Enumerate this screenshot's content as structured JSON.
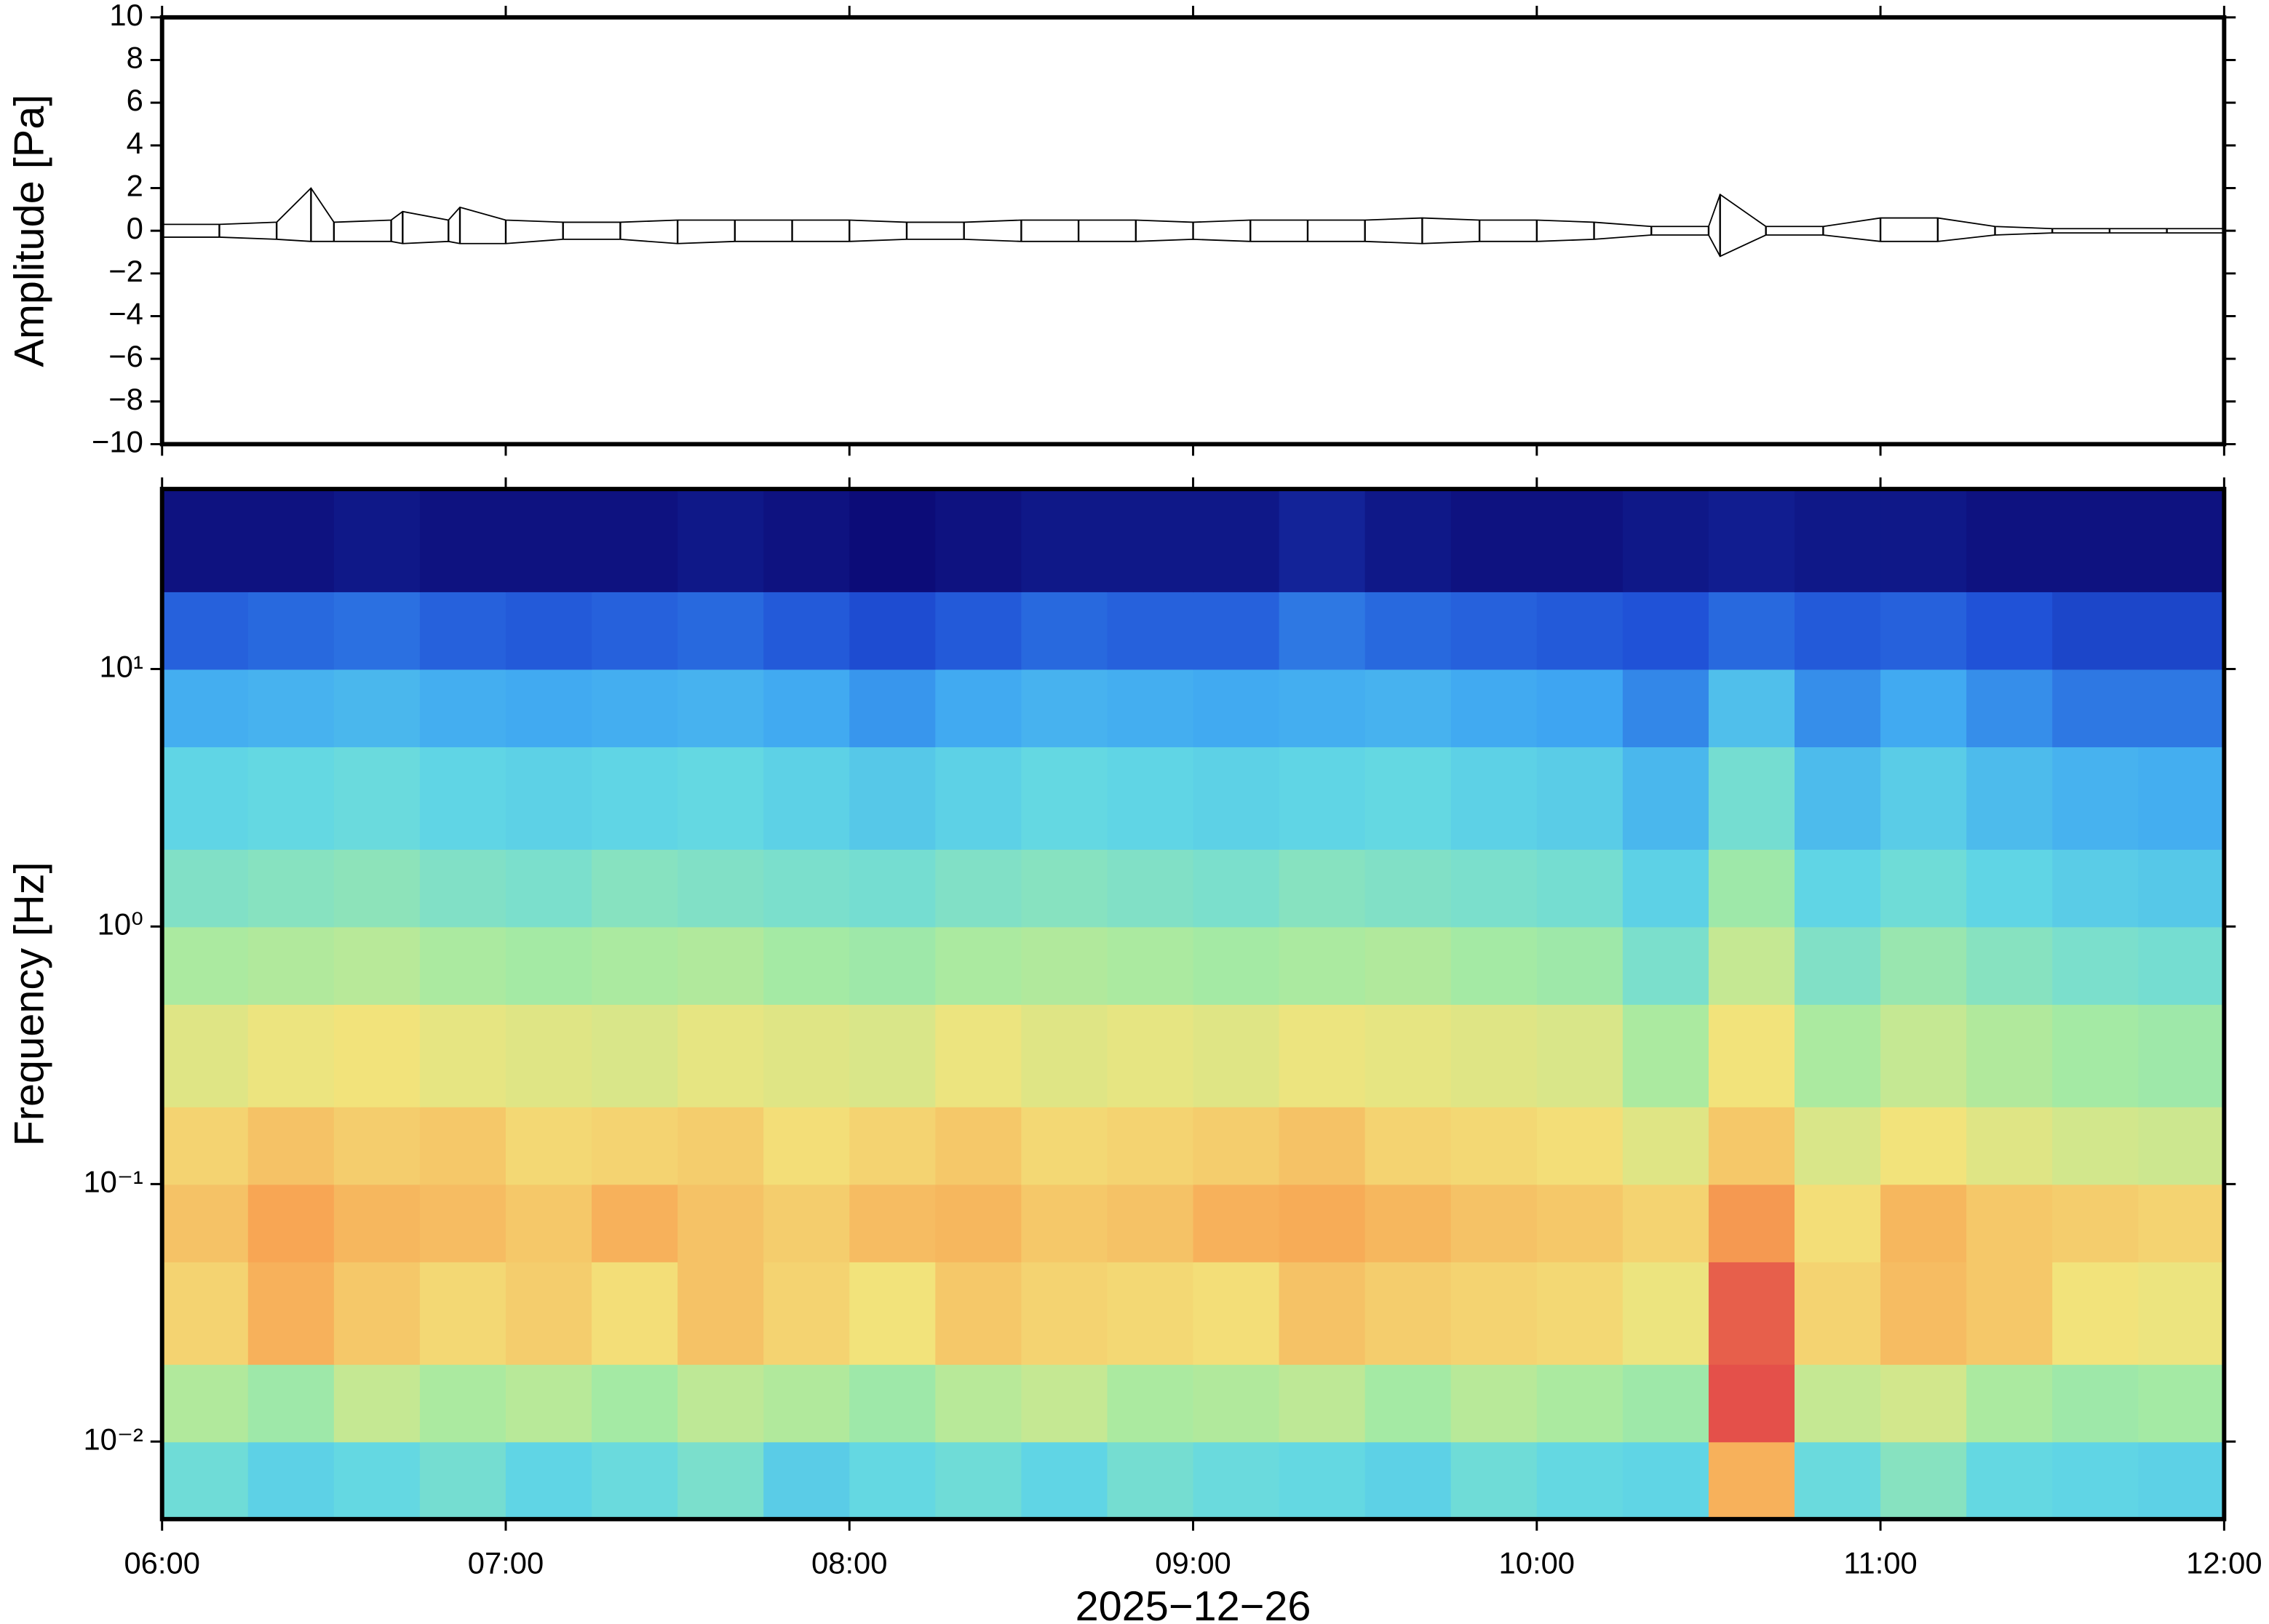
{
  "chart_data": [
    {
      "type": "line",
      "ylabel": "Amplitude [Pa]",
      "x": [
        "06:00",
        "06:10",
        "06:20",
        "06:26",
        "06:30",
        "06:40",
        "06:42",
        "06:50",
        "06:52",
        "07:00",
        "07:10",
        "07:20",
        "07:30",
        "07:40",
        "07:50",
        "08:00",
        "08:10",
        "08:20",
        "08:30",
        "08:40",
        "08:50",
        "09:00",
        "09:10",
        "09:20",
        "09:30",
        "09:40",
        "09:50",
        "10:00",
        "10:10",
        "10:20",
        "10:30",
        "10:32",
        "10:40",
        "10:50",
        "11:00",
        "11:10",
        "11:20",
        "11:30",
        "11:40",
        "11:50",
        "12:00"
      ],
      "series": [
        {
          "color": "#000000",
          "values": [
            0.3,
            0.3,
            0.4,
            2.0,
            0.4,
            0.5,
            0.9,
            0.5,
            1.1,
            0.5,
            0.4,
            0.4,
            0.5,
            0.5,
            0.5,
            0.5,
            0.4,
            0.4,
            0.5,
            0.5,
            0.5,
            0.4,
            0.5,
            0.5,
            0.5,
            0.6,
            0.5,
            0.5,
            0.4,
            0.2,
            0.2,
            1.7,
            0.2,
            0.2,
            0.6,
            0.6,
            0.2,
            0.1,
            0.1,
            0.1,
            0.1
          ]
        },
        {
          "color": "#000000",
          "values": [
            -0.3,
            -0.3,
            -0.4,
            -0.5,
            -0.5,
            -0.5,
            -0.6,
            -0.5,
            -0.6,
            -0.6,
            -0.4,
            -0.4,
            -0.6,
            -0.5,
            -0.5,
            -0.5,
            -0.4,
            -0.4,
            -0.5,
            -0.5,
            -0.5,
            -0.4,
            -0.5,
            -0.5,
            -0.5,
            -0.6,
            -0.5,
            -0.5,
            -0.4,
            -0.2,
            -0.2,
            -1.2,
            -0.2,
            -0.2,
            -0.5,
            -0.5,
            -0.2,
            -0.1,
            -0.1,
            -0.1,
            -0.1
          ]
        }
      ],
      "xlim": [
        "06:00",
        "12:00"
      ],
      "ylim": [
        -10,
        10
      ],
      "yticks": [
        {
          "value": -10,
          "label": "−10"
        },
        {
          "value": -8,
          "label": "−8"
        },
        {
          "value": -6,
          "label": "−6"
        },
        {
          "value": -4,
          "label": "−4"
        },
        {
          "value": -2,
          "label": "−2"
        },
        0,
        2,
        4,
        6,
        8,
        10
      ]
    },
    {
      "type": "heatmap",
      "ylabel": "Frequency [Hz]",
      "xlabel": "2025−12−26",
      "x_edges": [
        "06:00",
        "06:15",
        "06:30",
        "06:45",
        "07:00",
        "07:15",
        "07:30",
        "07:45",
        "08:00",
        "08:15",
        "08:30",
        "08:45",
        "09:00",
        "09:15",
        "09:30",
        "09:45",
        "10:00",
        "10:15",
        "10:30",
        "10:45",
        "11:00",
        "11:15",
        "11:30",
        "11:45",
        "12:00"
      ],
      "y_edges": [
        0.005,
        0.01,
        0.02,
        0.05,
        0.1,
        0.2,
        0.5,
        1,
        2,
        5,
        10,
        20,
        50
      ],
      "values": [
        [
          4.2,
          3.8,
          4.0,
          4.3,
          3.9,
          4.1,
          4.4,
          3.7,
          4.0,
          4.2,
          3.9,
          4.3,
          4.1,
          4.0,
          3.8,
          4.2,
          4.0,
          3.9,
          7.2,
          4.1,
          4.6,
          4.0,
          3.9,
          3.8
        ],
        [
          5.3,
          5.0,
          5.6,
          5.2,
          5.4,
          5.1,
          5.5,
          5.3,
          5.0,
          5.4,
          5.6,
          5.2,
          5.3,
          5.5,
          5.1,
          5.4,
          5.2,
          5.0,
          8.6,
          5.6,
          5.8,
          5.2,
          5.0,
          5.1
        ],
        [
          6.6,
          7.2,
          6.8,
          6.5,
          6.7,
          6.4,
          6.9,
          6.6,
          6.3,
          6.8,
          6.6,
          6.5,
          6.4,
          6.9,
          6.7,
          6.6,
          6.5,
          6.2,
          8.4,
          6.6,
          7.0,
          6.8,
          6.3,
          6.2
        ],
        [
          6.9,
          7.4,
          7.1,
          7.0,
          6.8,
          7.2,
          6.9,
          6.7,
          7.0,
          7.1,
          6.8,
          6.9,
          7.2,
          7.3,
          7.1,
          6.9,
          6.8,
          6.6,
          7.6,
          6.4,
          7.1,
          6.8,
          6.7,
          6.6
        ],
        [
          6.6,
          6.9,
          6.7,
          6.8,
          6.5,
          6.6,
          6.7,
          6.4,
          6.6,
          6.8,
          6.5,
          6.6,
          6.7,
          6.9,
          6.6,
          6.5,
          6.4,
          6.0,
          6.8,
          5.9,
          6.3,
          6.0,
          5.8,
          5.7
        ],
        [
          6.0,
          6.2,
          6.3,
          6.1,
          6.0,
          5.9,
          6.1,
          6.0,
          5.9,
          6.2,
          6.0,
          6.1,
          6.0,
          6.2,
          6.1,
          6.0,
          5.9,
          5.2,
          6.3,
          5.2,
          5.6,
          5.3,
          5.1,
          5.0
        ],
        [
          5.2,
          5.3,
          5.4,
          5.2,
          5.1,
          5.2,
          5.3,
          5.1,
          5.0,
          5.2,
          5.3,
          5.2,
          5.1,
          5.2,
          5.3,
          5.1,
          5.0,
          4.4,
          5.6,
          4.5,
          4.9,
          4.6,
          4.4,
          4.3
        ],
        [
          4.5,
          4.6,
          4.7,
          4.5,
          4.4,
          4.6,
          4.5,
          4.4,
          4.3,
          4.5,
          4.6,
          4.5,
          4.4,
          4.6,
          4.5,
          4.4,
          4.3,
          3.8,
          5.0,
          3.9,
          4.2,
          3.9,
          3.7,
          3.6
        ],
        [
          3.9,
          4.0,
          4.1,
          3.9,
          3.8,
          3.9,
          4.0,
          3.8,
          3.6,
          3.8,
          4.0,
          3.9,
          3.8,
          3.9,
          4.0,
          3.8,
          3.7,
          3.2,
          4.3,
          3.3,
          3.7,
          3.3,
          3.1,
          3.0
        ],
        [
          3.0,
          3.1,
          3.2,
          3.0,
          2.9,
          3.0,
          3.1,
          2.9,
          2.6,
          2.9,
          3.1,
          3.0,
          2.9,
          3.0,
          3.1,
          2.9,
          2.8,
          2.4,
          3.4,
          2.5,
          2.9,
          2.5,
          2.2,
          2.2
        ],
        [
          1.9,
          2.0,
          2.1,
          1.9,
          1.8,
          1.9,
          2.0,
          1.8,
          1.6,
          1.8,
          2.0,
          1.9,
          1.9,
          2.2,
          2.0,
          1.9,
          1.8,
          1.7,
          2.0,
          1.8,
          1.9,
          1.7,
          1.5,
          1.5
        ],
        [
          0.6,
          0.6,
          0.7,
          0.6,
          0.6,
          0.6,
          0.7,
          0.6,
          0.5,
          0.6,
          0.7,
          0.7,
          0.7,
          0.9,
          0.7,
          0.6,
          0.6,
          0.7,
          0.8,
          0.7,
          0.7,
          0.6,
          0.6,
          0.6
        ]
      ],
      "colormap": [
        "#0c0c78",
        "#1f4fd6",
        "#3ea6f2",
        "#62d8e4",
        "#a6eaa2",
        "#f2e47c",
        "#f8a452",
        "#e4504a"
      ],
      "xlim": [
        "06:00",
        "12:00"
      ],
      "xticks": [
        "06:00",
        "07:00",
        "08:00",
        "09:00",
        "10:00",
        "11:00",
        "12:00"
      ],
      "ylim": [
        0.005,
        50
      ],
      "yscale": "log",
      "yticks": [
        {
          "value": 0.01,
          "label": "10⁻²"
        },
        {
          "value": 0.1,
          "label": "10⁻¹"
        },
        {
          "value": 1,
          "label": "10⁰"
        },
        {
          "value": 10,
          "label": "10¹"
        }
      ]
    }
  ]
}
